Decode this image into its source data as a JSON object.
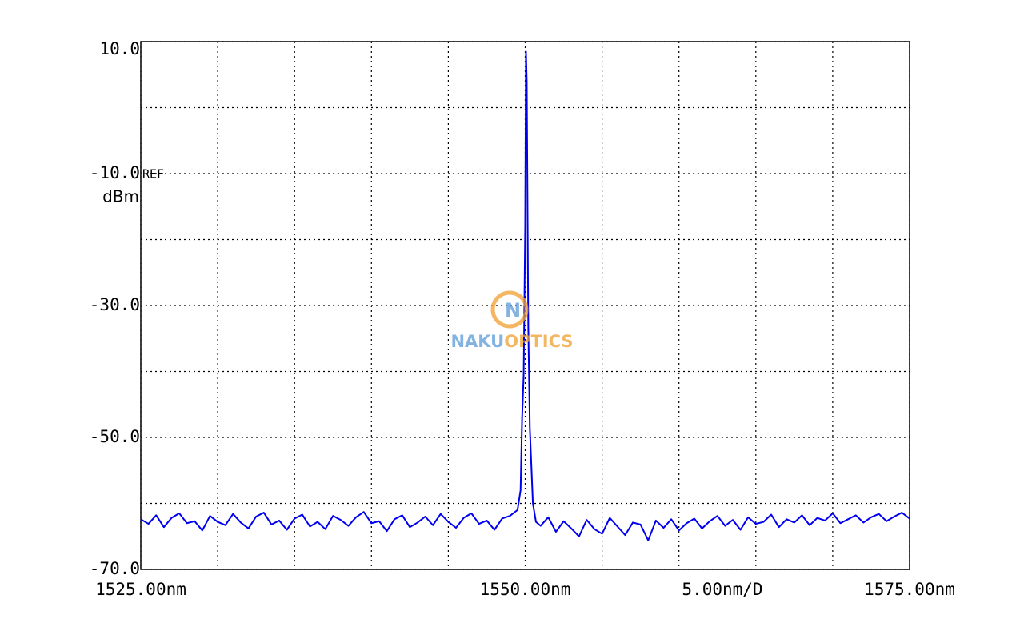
{
  "chart_data": {
    "type": "line",
    "y_unit_label": "dBm",
    "ref_label": "REF",
    "span_label": "5.00nm/D",
    "watermark": {
      "logo": "N",
      "parts": [
        "NAKU",
        "OPTICS"
      ]
    },
    "xlim": [
      1525,
      1575
    ],
    "ylim": [
      -70,
      10
    ],
    "grid": true,
    "xticks": [
      {
        "value": 1525,
        "label": "1525.00nm"
      },
      {
        "value": 1530,
        "label": null
      },
      {
        "value": 1535,
        "label": null
      },
      {
        "value": 1540,
        "label": null
      },
      {
        "value": 1545,
        "label": null
      },
      {
        "value": 1550,
        "label": "1550.00nm"
      },
      {
        "value": 1555,
        "label": null
      },
      {
        "value": 1560,
        "label": null
      },
      {
        "value": 1565,
        "label": null
      },
      {
        "value": 1570,
        "label": null
      },
      {
        "value": 1575,
        "label": "1575.00nm"
      }
    ],
    "yticks": [
      {
        "value": 10,
        "label": "10.0"
      },
      {
        "value": 0,
        "label": null
      },
      {
        "value": -10,
        "label": "-10.0"
      },
      {
        "value": -20,
        "label": null
      },
      {
        "value": -30,
        "label": "-30.0"
      },
      {
        "value": -40,
        "label": null
      },
      {
        "value": -50,
        "label": "-50.0"
      },
      {
        "value": -60,
        "label": null
      },
      {
        "value": -70,
        "label": "-70.0"
      }
    ],
    "x": [
      1525,
      1525.5,
      1526,
      1526.5,
      1527,
      1527.5,
      1528,
      1528.5,
      1529,
      1529.5,
      1530,
      1530.5,
      1531,
      1531.5,
      1532,
      1532.5,
      1533,
      1533.5,
      1534,
      1534.5,
      1535,
      1535.5,
      1536,
      1536.5,
      1537,
      1537.5,
      1538,
      1538.5,
      1539,
      1539.5,
      1540,
      1540.5,
      1541,
      1541.5,
      1542,
      1542.5,
      1543,
      1543.5,
      1544,
      1544.5,
      1545,
      1545.5,
      1546,
      1546.5,
      1547,
      1547.5,
      1548,
      1548.5,
      1549,
      1549.5,
      1549.7,
      1549.8,
      1549.9,
      1550.0,
      1550.05,
      1550.1,
      1550.2,
      1550.3,
      1550.5,
      1550.7,
      1551,
      1551.5,
      1552,
      1552.5,
      1553,
      1553.5,
      1554,
      1554.5,
      1555,
      1555.5,
      1556,
      1556.5,
      1557,
      1557.5,
      1558,
      1558.5,
      1559,
      1559.5,
      1560,
      1560.5,
      1561,
      1561.5,
      1562,
      1562.5,
      1563,
      1563.5,
      1564,
      1564.5,
      1565,
      1565.5,
      1566,
      1566.5,
      1567,
      1567.5,
      1568,
      1568.5,
      1569,
      1569.5,
      1570,
      1570.5,
      1571,
      1571.5,
      1572,
      1572.5,
      1573,
      1573.5,
      1574,
      1574.5,
      1575
    ],
    "series": [
      {
        "color": "#0000ee",
        "values": [
          -62.4,
          -63.1,
          -61.8,
          -63.6,
          -62.2,
          -61.5,
          -63.0,
          -62.7,
          -64.1,
          -61.9,
          -62.8,
          -63.3,
          -61.6,
          -62.9,
          -63.8,
          -62.0,
          -61.4,
          -63.2,
          -62.6,
          -64.0,
          -62.3,
          -61.7,
          -63.5,
          -62.8,
          -63.9,
          -61.9,
          -62.5,
          -63.4,
          -62.1,
          -61.3,
          -63.0,
          -62.7,
          -64.2,
          -62.4,
          -61.8,
          -63.6,
          -62.9,
          -62.0,
          -63.3,
          -61.6,
          -62.8,
          -63.7,
          -62.2,
          -61.5,
          -63.1,
          -62.6,
          -64.0,
          -62.3,
          -61.9,
          -61.0,
          -58.0,
          -47.0,
          -40.5,
          -18.0,
          8.5,
          4.0,
          -33.0,
          -48.5,
          -60.0,
          -62.8,
          -63.4,
          -62.1,
          -64.3,
          -62.7,
          -63.8,
          -65.0,
          -62.5,
          -63.9,
          -64.6,
          -62.2,
          -63.5,
          -64.8,
          -62.9,
          -63.2,
          -65.6,
          -62.6,
          -63.7,
          -62.4,
          -64.1,
          -63.0,
          -62.3,
          -63.8,
          -62.7,
          -61.9,
          -63.4,
          -62.5,
          -64.0,
          -62.1,
          -63.1,
          -62.8,
          -61.7,
          -63.6,
          -62.4,
          -62.9,
          -61.8,
          -63.3,
          -62.2,
          -62.6,
          -61.5,
          -63.0,
          -62.4,
          -61.8,
          -62.9,
          -62.1,
          -61.6,
          -62.7,
          -62.0,
          -61.4,
          -62.3
        ]
      }
    ]
  }
}
